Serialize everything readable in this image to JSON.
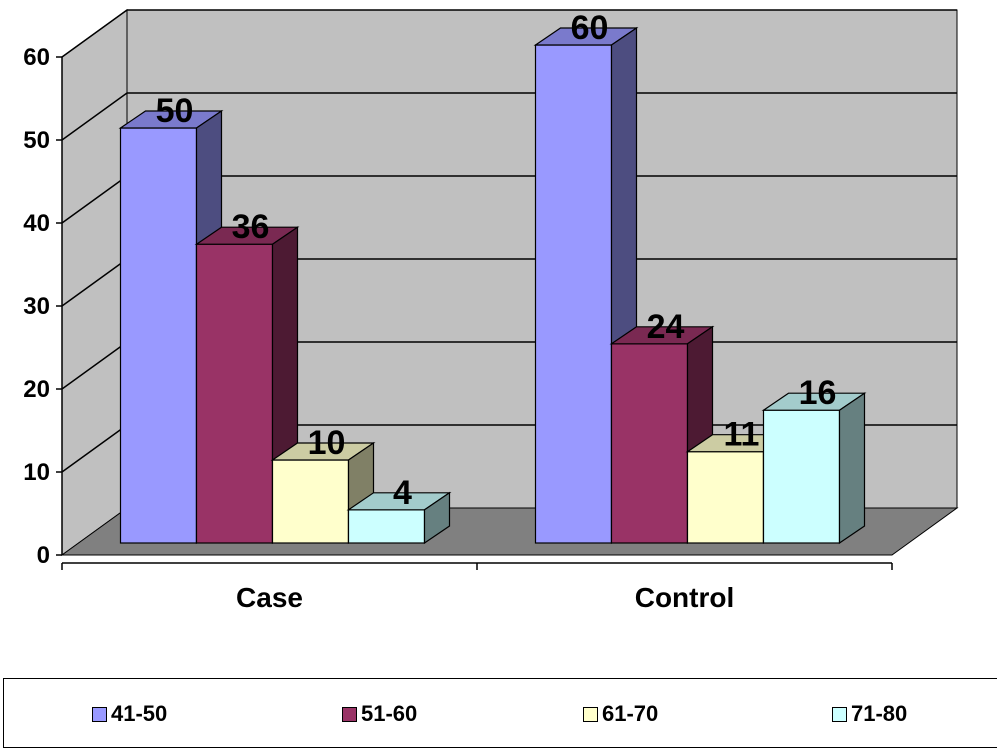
{
  "chart_data": {
    "type": "bar",
    "categories": [
      "Case",
      "Control"
    ],
    "series": [
      {
        "name": "41-50",
        "values": [
          50,
          60
        ],
        "color": "#9999FF"
      },
      {
        "name": "51-60",
        "values": [
          36,
          24
        ],
        "color": "#993366"
      },
      {
        "name": "61-70",
        "values": [
          10,
          11
        ],
        "color": "#FFFFCC"
      },
      {
        "name": "71-80",
        "values": [
          4,
          16
        ],
        "color": "#CCFFFF"
      }
    ],
    "yticks": [
      0,
      10,
      20,
      30,
      40,
      50,
      60
    ],
    "ylim": [
      0,
      60
    ],
    "grid": true,
    "three_d": true,
    "legend_position": "bottom",
    "wall_color": "#C0C0C0",
    "floor_color": "#808080"
  }
}
